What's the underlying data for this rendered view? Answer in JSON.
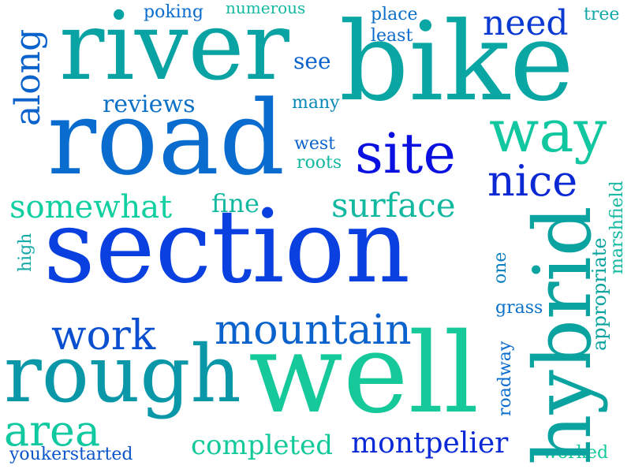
{
  "words": {
    "section": {
      "text": "section",
      "color": "#0b40e0"
    },
    "bike": {
      "text": "bike",
      "color": "#0aa6a3"
    },
    "road": {
      "text": "road",
      "color": "#0a6ccf"
    },
    "river": {
      "text": "river",
      "color": "#0aa3a3"
    },
    "well": {
      "text": "well",
      "color": "#15c99a"
    },
    "rough": {
      "text": "rough",
      "color": "#0a97a8"
    },
    "hybrid": {
      "text": "hybrid",
      "color": "#0aa3a0"
    },
    "site": {
      "text": "site",
      "color": "#0a10e0"
    },
    "way": {
      "text": "way",
      "color": "#10c7a0"
    },
    "mountain": {
      "text": "mountain",
      "color": "#0a62cc"
    },
    "nice": {
      "text": "nice",
      "color": "#0a28d4"
    },
    "area": {
      "text": "area",
      "color": "#10c9a0"
    },
    "work": {
      "text": "work",
      "color": "#0a4fcf"
    },
    "need": {
      "text": "need",
      "color": "#0a3ad2"
    },
    "somewhat": {
      "text": "somewhat",
      "color": "#10cfa0"
    },
    "surface": {
      "text": "surface",
      "color": "#12b8a0"
    },
    "along": {
      "text": "along",
      "color": "#0a62cc"
    },
    "montpelier": {
      "text": "montpelier",
      "color": "#0a2ad8"
    },
    "completed": {
      "text": "completed",
      "color": "#12c99a"
    },
    "reviews": {
      "text": "reviews",
      "color": "#0a70c8"
    },
    "fine": {
      "text": "fine",
      "color": "#12b8a0"
    },
    "youkerstarted": {
      "text": "youkerstarted",
      "color": "#0a55cc"
    },
    "poking": {
      "text": "poking",
      "color": "#0a6ccf"
    },
    "numerous": {
      "text": "numerous",
      "color": "#12b8a0"
    },
    "place": {
      "text": "place",
      "color": "#0a70c8"
    },
    "least": {
      "text": "least",
      "color": "#0a6ccf"
    },
    "tree": {
      "text": "tree",
      "color": "#12a8a8"
    },
    "see": {
      "text": "see",
      "color": "#0a62cc"
    },
    "many": {
      "text": "many",
      "color": "#0a88b8"
    },
    "west": {
      "text": "west",
      "color": "#0a62cc"
    },
    "roots": {
      "text": "roots",
      "color": "#12b8a0"
    },
    "high": {
      "text": "high",
      "color": "#12a8a8"
    },
    "one": {
      "text": "one",
      "color": "#0a7fc0"
    },
    "grass": {
      "text": "grass",
      "color": "#0a70c8"
    },
    "roadway": {
      "text": "roadway",
      "color": "#0a6ccf"
    },
    "appropriate": {
      "text": "appropriate",
      "color": "#0aa3a0"
    },
    "marshfield": {
      "text": "marshfield",
      "color": "#12b8a0"
    },
    "worked": {
      "text": "worked",
      "color": "#12c99a"
    }
  }
}
